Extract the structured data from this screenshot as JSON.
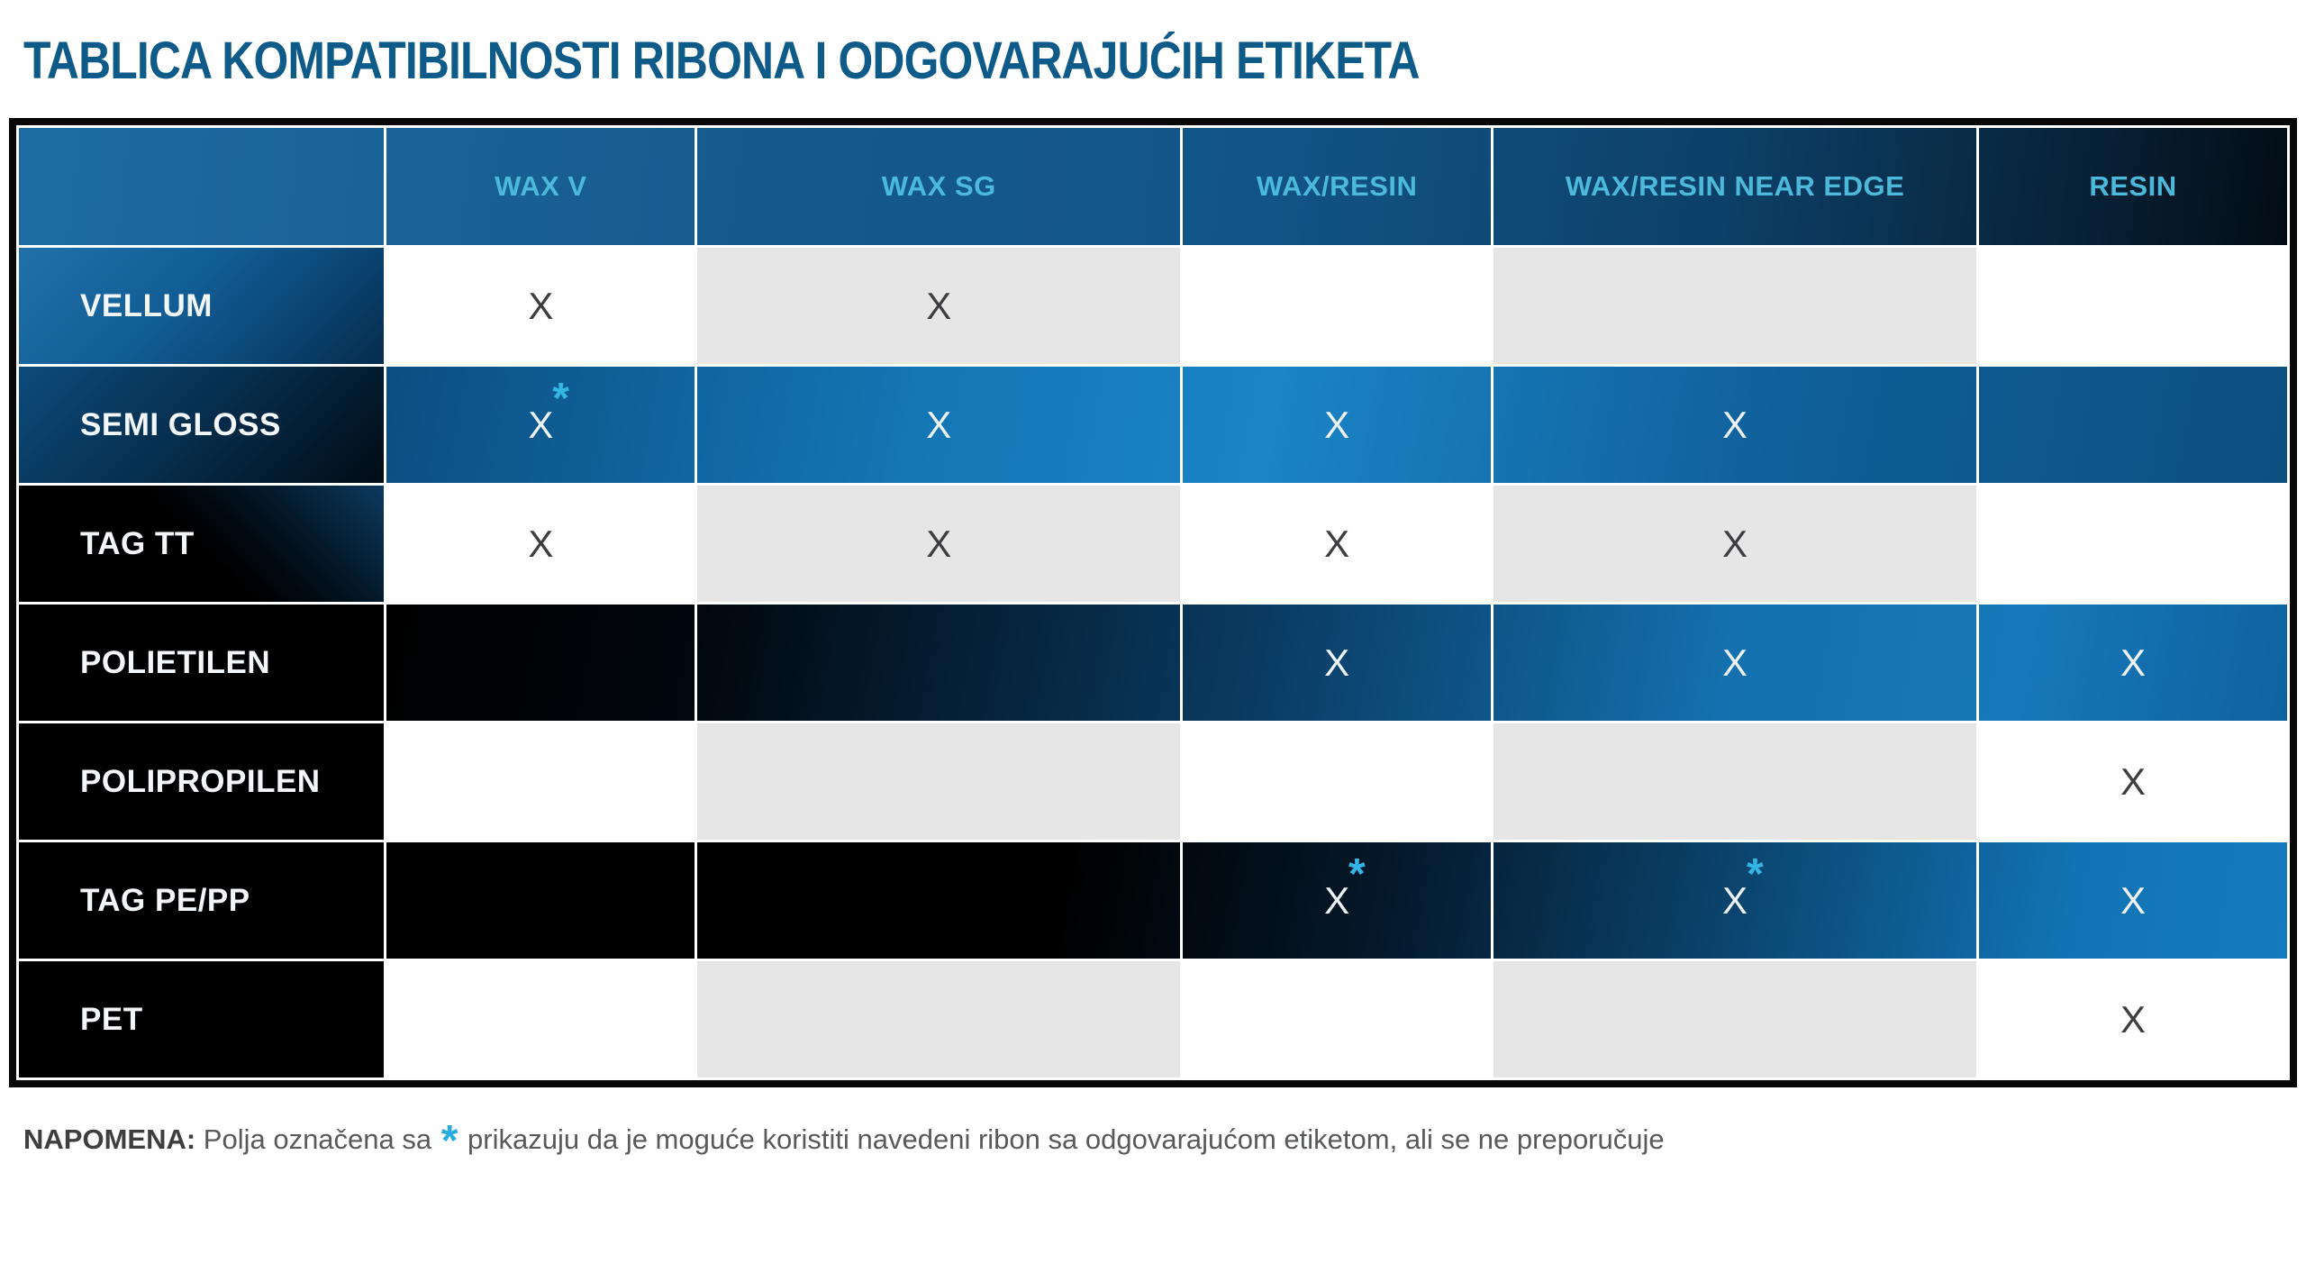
{
  "title": "TABLICA KOMPATIBILNOSTI RIBONA I ODGOVARAJUĆIH ETIKETA",
  "table": {
    "columns": [
      "WAX V",
      "WAX SG",
      "WAX/RESIN",
      "WAX/RESIN NEAR EDGE",
      "RESIN"
    ],
    "rows": [
      {
        "label": "VELLUM",
        "cells": [
          {
            "mark": "X"
          },
          {
            "mark": "X"
          },
          {},
          {},
          {}
        ]
      },
      {
        "label": "SEMI GLOSS",
        "cells": [
          {
            "mark": "X",
            "star": "*"
          },
          {
            "mark": "X"
          },
          {
            "mark": "X"
          },
          {
            "mark": "X"
          },
          {}
        ]
      },
      {
        "label": "TAG TT",
        "cells": [
          {
            "mark": "X"
          },
          {
            "mark": "X"
          },
          {
            "mark": "X"
          },
          {
            "mark": "X"
          },
          {}
        ]
      },
      {
        "label": "POLIETILEN",
        "cells": [
          {},
          {},
          {
            "mark": "X"
          },
          {
            "mark": "X"
          },
          {
            "mark": "X"
          }
        ]
      },
      {
        "label": "POLIPROPILEN",
        "cells": [
          {},
          {},
          {},
          {},
          {
            "mark": "X"
          }
        ]
      },
      {
        "label": "TAG PE/PP",
        "cells": [
          {},
          {},
          {
            "mark": "X",
            "star": "*"
          },
          {
            "mark": "X",
            "star": "*"
          },
          {
            "mark": "X"
          }
        ]
      },
      {
        "label": "PET",
        "cells": [
          {},
          {},
          {},
          {},
          {
            "mark": "X"
          }
        ]
      }
    ]
  },
  "note": {
    "label": "NAPOMENA:",
    "before_star": " Polja označena sa ",
    "star": "*",
    "after_star": " prikazuju da je moguće koristiti navedeni ribon sa odgovarajućom etiketom, ali se ne preporučuje"
  },
  "colors": {
    "title_blue": "#0e5a89",
    "header_text_cyan": "#4cb9da",
    "bright_blue": "#1477b5",
    "gray_cell": "#e6e6e6",
    "star_cyan": "#29abe2",
    "note_gray": "#58595b"
  }
}
